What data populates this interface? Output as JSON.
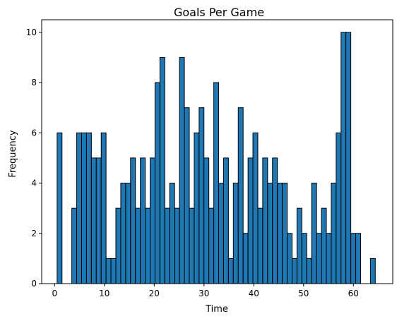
{
  "chart_data": {
    "type": "bar",
    "title": "Goals Per Game",
    "xlabel": "Time",
    "ylabel": "Frequency",
    "xlim": [
      -2.6,
      67.9
    ],
    "ylim": [
      0,
      10.5
    ],
    "xticks": [
      0,
      10,
      20,
      30,
      40,
      50,
      60
    ],
    "yticks": [
      0,
      2,
      4,
      6,
      8,
      10
    ],
    "bin_width": 0.983,
    "bin_start": 0.5,
    "values": [
      6,
      0,
      0,
      3,
      6,
      6,
      6,
      5,
      5,
      6,
      1,
      1,
      3,
      4,
      4,
      5,
      3,
      5,
      3,
      5,
      8,
      9,
      3,
      4,
      3,
      9,
      7,
      3,
      6,
      7,
      5,
      3,
      8,
      4,
      5,
      1,
      4,
      7,
      2,
      5,
      6,
      3,
      5,
      4,
      5,
      4,
      4,
      2,
      1,
      3,
      2,
      1,
      4,
      2,
      3,
      2,
      4,
      6,
      10,
      10,
      2,
      2,
      0,
      0,
      1
    ],
    "bar_color": "#1f77b4",
    "edge_color": "#000000",
    "grid": false
  }
}
